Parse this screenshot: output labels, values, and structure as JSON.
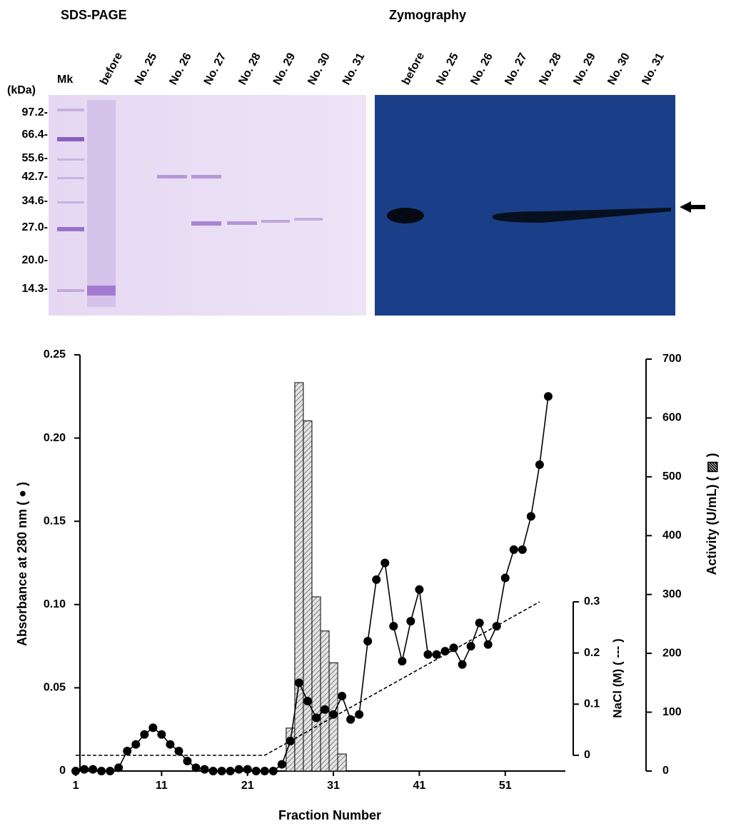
{
  "gels": {
    "sds_title": "SDS-PAGE",
    "zymo_title": "Zymography",
    "marker_lane": "Mk",
    "unit": "(kDa)",
    "markers": [
      "97.2-",
      "66.4-",
      "55.6-",
      "42.7-",
      "34.6-",
      "27.0-",
      "20.0-",
      "14.3-"
    ],
    "sds_lanes": [
      "before",
      "No. 25",
      "No. 26",
      "No. 27",
      "No. 28",
      "No. 29",
      "No. 30",
      "No. 31"
    ],
    "zymo_lanes": [
      "before",
      "No. 25",
      "No. 26",
      "No. 27",
      "No. 28",
      "No. 29",
      "No. 30",
      "No. 31"
    ]
  },
  "chart_data": {
    "type": "combo",
    "x_label": "Fraction Number",
    "y_label": "Absorbance at 280 nm ( ● )",
    "y2_label": "Activity (U/mL) ( ▨ )",
    "y3_label": "NaCl (M) ( --- )",
    "xlim": [
      0.5,
      58
    ],
    "xticks": [
      1,
      11,
      21,
      31,
      41,
      51
    ],
    "ylim": [
      0,
      0.25
    ],
    "yticks": [
      0,
      0.05,
      {
        "value": 0.1,
        "label": "0.10"
      },
      0.15,
      {
        "value": 0.2,
        "label": "0.20"
      },
      0.25
    ],
    "y2lim": [
      0,
      700
    ],
    "y2ticks": [
      0,
      100,
      200,
      300,
      400,
      500,
      600,
      700
    ],
    "y3lim": [
      0,
      0.3
    ],
    "y3ticks": [
      0,
      0.1,
      0.2,
      0.3
    ],
    "absorbance": {
      "color": "#000000",
      "x": [
        1,
        2,
        3,
        4,
        5,
        6,
        7,
        8,
        9,
        10,
        11,
        12,
        13,
        14,
        15,
        16,
        17,
        18,
        19,
        20,
        21,
        22,
        23,
        24,
        25,
        26,
        27,
        28,
        29,
        30,
        31,
        32,
        33,
        34,
        35,
        36,
        37,
        38,
        39,
        40,
        41,
        42,
        43,
        44,
        45,
        46,
        47,
        48,
        49,
        50,
        51,
        52,
        53,
        54,
        55,
        56
      ],
      "values": [
        0,
        0.001,
        0.001,
        0,
        0,
        0.002,
        0.012,
        0.016,
        0.022,
        0.026,
        0.022,
        0.016,
        0.012,
        0.006,
        0.002,
        0.001,
        0,
        0,
        0,
        0.001,
        0.001,
        0,
        0,
        0,
        0.004,
        0.018,
        0.053,
        0.042,
        0.032,
        0.037,
        0.034,
        0.045,
        0.031,
        0.034,
        0.078,
        0.115,
        0.125,
        0.087,
        0.066,
        0.09,
        0.109,
        0.07,
        0.07,
        0.072,
        0.074,
        0.064,
        0.075,
        0.089,
        0.076,
        0.087,
        0.116,
        0.133,
        0.133,
        0.153,
        0.184,
        0.225
      ]
    },
    "activity": {
      "axis": "y2",
      "color": "#d8d8d8",
      "x": [
        26,
        27,
        28,
        29,
        30,
        31,
        32
      ],
      "values": [
        73,
        660,
        595,
        296,
        238,
        184,
        29
      ]
    },
    "nacl": {
      "axis": "y3",
      "color": "#000000",
      "x": [
        1,
        23,
        55
      ],
      "values": [
        0,
        0,
        0.3
      ]
    }
  }
}
